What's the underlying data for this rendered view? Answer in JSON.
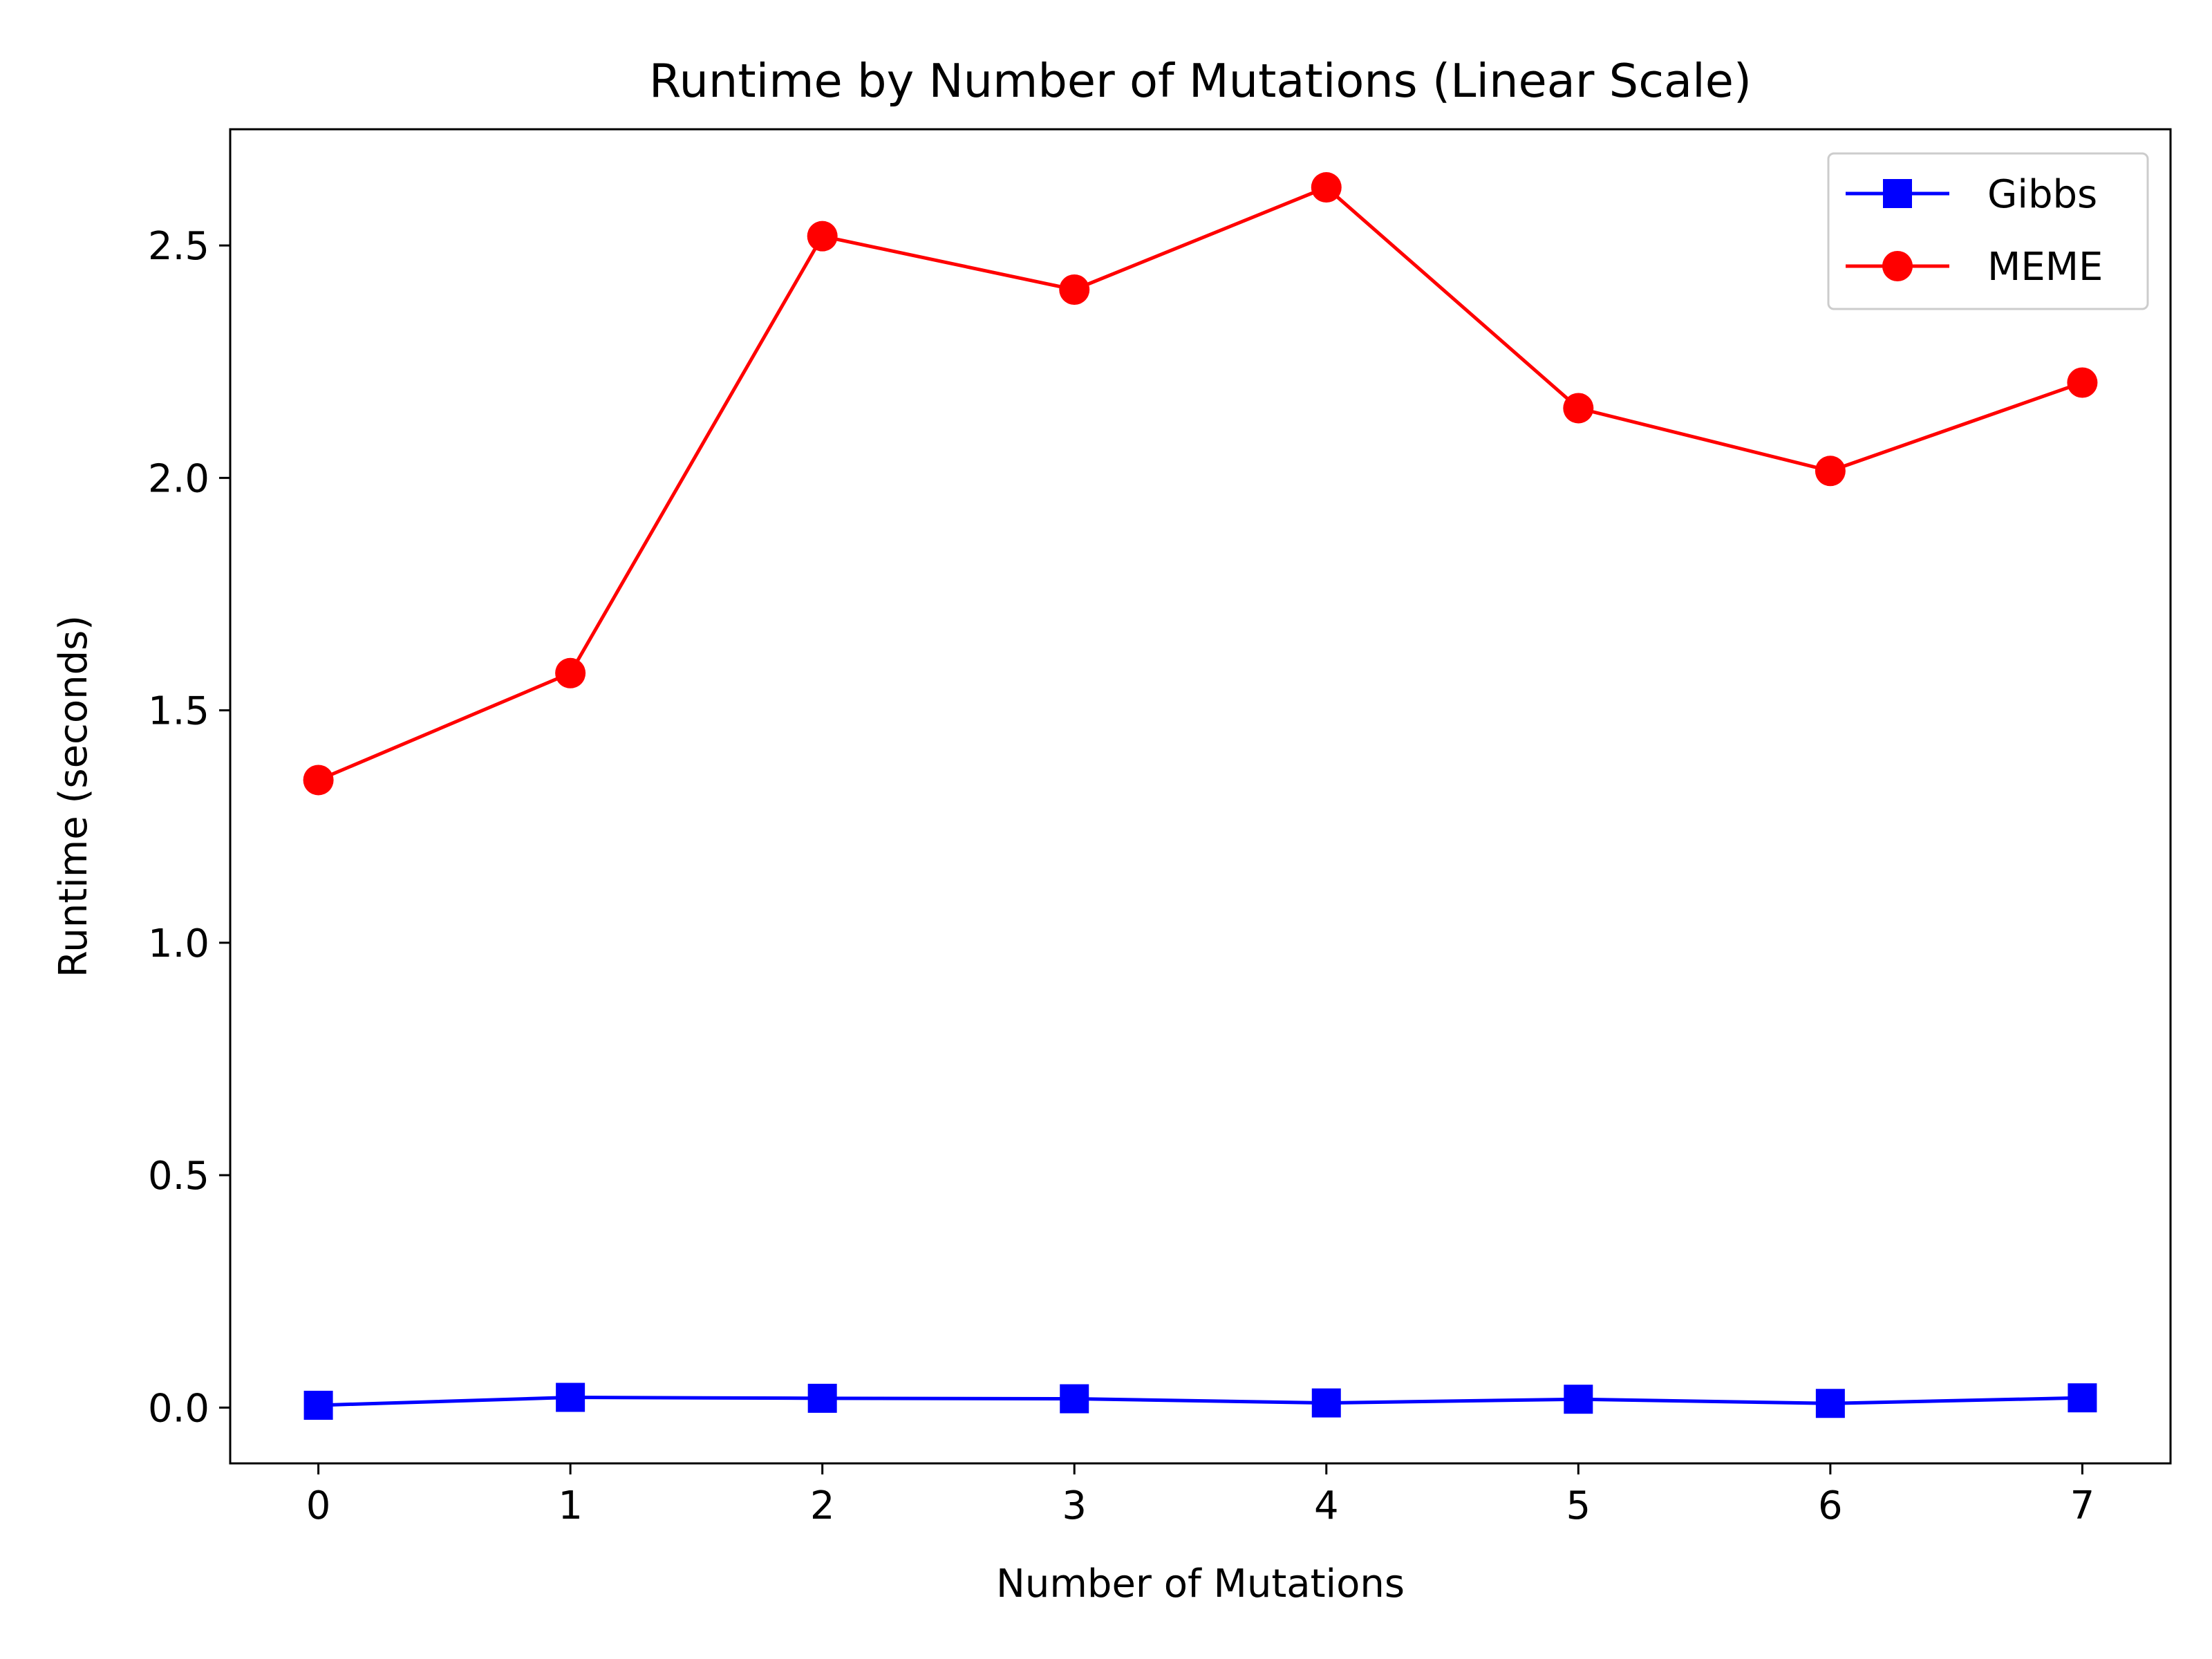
{
  "chart_data": {
    "type": "line",
    "title": "Runtime by Number of Mutations (Linear Scale)",
    "xlabel": "Number of Mutations",
    "ylabel": "Runtime (seconds)",
    "x": [
      0,
      1,
      2,
      3,
      4,
      5,
      6,
      7
    ],
    "xlim": [
      -0.35,
      7.35
    ],
    "ylim": [
      -0.12,
      2.75
    ],
    "xticks": [
      0,
      1,
      2,
      3,
      4,
      5,
      6,
      7
    ],
    "yticks": [
      0.0,
      0.5,
      1.0,
      1.5,
      2.0,
      2.5
    ],
    "ytick_labels": [
      "0.0",
      "0.5",
      "1.0",
      "1.5",
      "2.0",
      "2.5"
    ],
    "grid": false,
    "legend_position": "top-right",
    "series": [
      {
        "name": "Gibbs",
        "color": "#0000ff",
        "marker": "square",
        "values": [
          0.005,
          0.022,
          0.02,
          0.019,
          0.01,
          0.018,
          0.009,
          0.021
        ]
      },
      {
        "name": "MEME",
        "color": "#ff0000",
        "marker": "circle",
        "values": [
          1.35,
          1.58,
          2.52,
          2.405,
          2.625,
          2.15,
          2.015,
          2.205
        ]
      }
    ]
  }
}
